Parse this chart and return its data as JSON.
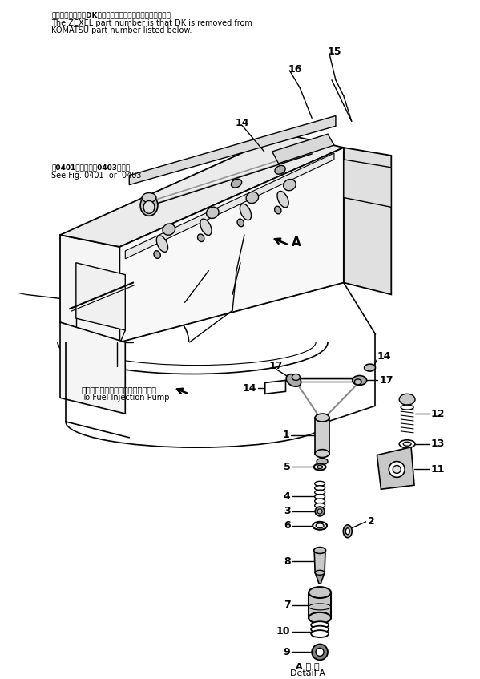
{
  "background_color": "#ffffff",
  "header_text_jp": "品番のメーカ記号DKを除いたものがゼクセルの品番です。",
  "header_text_en1": "The ZEXEL part number is that DK is removed from",
  "header_text_en2": "KOMATSU part number listed below.",
  "note_jp": "図0401図または図0403図参照",
  "note_en": "See Fig. 0401  or  0403",
  "fuel_pump_jp": "フゥエルインジェクションポンプへ",
  "fuel_pump_en": "To Fuel Injection Pump",
  "detail_line1": "A 部 詳",
  "detail_line2": "Detail A",
  "fig_width": 5.99,
  "fig_height": 8.47,
  "dpi": 100
}
